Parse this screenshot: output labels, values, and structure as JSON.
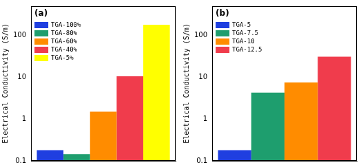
{
  "chart_data": [
    {
      "type": "bar",
      "title": "(a)",
      "y_label": "Electrical Conductivity (S/m)",
      "categories": [
        null
      ],
      "series": [
        {
          "name": "TGA-100%",
          "color": "#1f3fe0",
          "values": [
            0.18
          ]
        },
        {
          "name": "TGA-80%",
          "color": "#1e9e6e",
          "values": [
            0.145
          ]
        },
        {
          "name": "TGA-60%",
          "color": "#ff8c00",
          "values": [
            1.5
          ]
        },
        {
          "name": "TGA-40%",
          "color": "#f03c4c",
          "values": [
            10.5
          ]
        },
        {
          "name": "TGA-5%",
          "color": "#ffff00",
          "values": [
            180
          ]
        }
      ],
      "ylim": [
        0.1,
        500
      ],
      "yticks": [
        0.1,
        1,
        10,
        100
      ],
      "log": "y",
      "grid": false,
      "legend": "upper left",
      "tick_labels": "y"
    },
    {
      "type": "bar",
      "title": "(b)",
      "y_label": "Electrical Conductivity (S/m)",
      "categories": [
        null
      ],
      "series": [
        {
          "name": "TGA-5",
          "color": "#1f3fe0",
          "values": [
            0.18
          ]
        },
        {
          "name": "TGA-7.5",
          "color": "#1e9e6e",
          "values": [
            4.3
          ]
        },
        {
          "name": "TGA-10",
          "color": "#ff8c00",
          "values": [
            7.5
          ]
        },
        {
          "name": "TGA-12.5",
          "color": "#f03c4c",
          "values": [
            31
          ]
        }
      ],
      "ylim": [
        0.1,
        500
      ],
      "yticks": [
        0.1,
        1,
        10,
        100
      ],
      "log": "y",
      "grid": false,
      "legend": "upper left",
      "tick_labels": "y"
    }
  ]
}
